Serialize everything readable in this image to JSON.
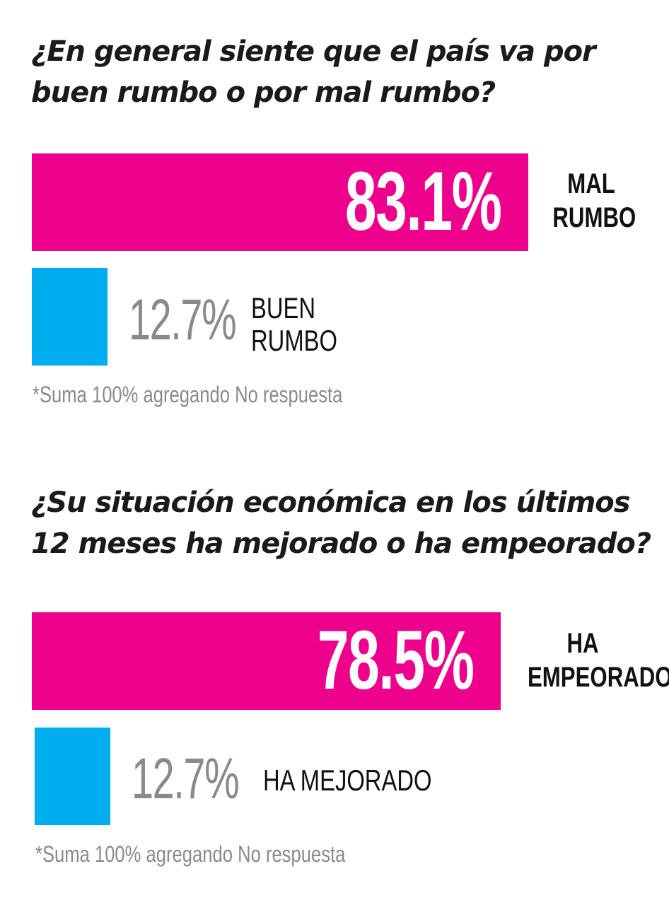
{
  "chart_data": [
    {
      "type": "bar",
      "orientation": "horizontal",
      "title": "¿En general siente que el país va por buen rumbo o por mal rumbo?",
      "categories": [
        "MAL RUMBO",
        "BUEN RUMBO"
      ],
      "category_lines": [
        [
          "MAL",
          "RUMBO"
        ],
        [
          "BUEN",
          "RUMBO"
        ]
      ],
      "values": [
        83.1,
        12.7
      ],
      "value_labels": [
        "83.1%",
        "12.7%"
      ],
      "colors": [
        "#ec008c",
        "#00aeef"
      ],
      "xlim": [
        0,
        100
      ],
      "footnote": "*Suma 100% agregando No respuesta"
    },
    {
      "type": "bar",
      "orientation": "horizontal",
      "title": "¿Su situación económica en los últimos 12 meses ha mejorado o ha empeorado?",
      "categories": [
        "HA EMPEORADO",
        "HA MEJORADO"
      ],
      "category_lines": [
        [
          "HA",
          "EMPEORADO"
        ],
        [
          "HA MEJORADO"
        ]
      ],
      "values": [
        78.5,
        12.7
      ],
      "value_labels": [
        "78.5%",
        "12.7%"
      ],
      "colors": [
        "#ec008c",
        "#00aeef"
      ],
      "xlim": [
        0,
        100
      ],
      "footnote": "*Suma 100% agregando No respuesta"
    }
  ]
}
